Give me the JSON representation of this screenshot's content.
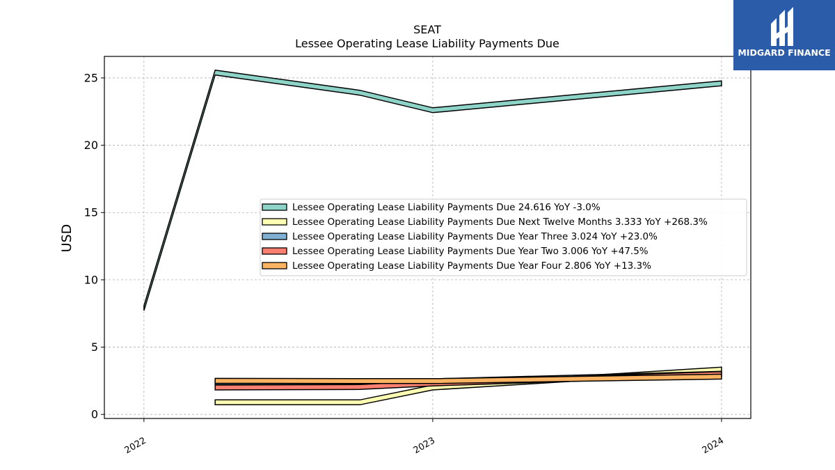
{
  "brand": {
    "name": "MIDGARD FINANCE",
    "bg_color": "#2a5caa"
  },
  "chart_data": {
    "type": "area",
    "title": "SEAT",
    "subtitle": "Lessee Operating Lease Liability Payments Due",
    "ylabel": "USD",
    "xlabel": "",
    "ylim": [
      -0.3,
      26.6
    ],
    "xlim": [
      "2021-11-12",
      "2024-02-07"
    ],
    "yticks": [
      0,
      5,
      10,
      15,
      20,
      25
    ],
    "xticks": [
      {
        "label": "2022",
        "date": "2022-01-01"
      },
      {
        "label": "2023",
        "date": "2023-01-01"
      },
      {
        "label": "2024",
        "date": "2024-01-01"
      }
    ],
    "grid": true,
    "legend_position": "center-right",
    "series": [
      {
        "name": "Lessee Operating Lease Liability Payments Due",
        "legend_label": "Lessee Operating Lease Liability Payments Due  24.616 YoY -3.0%",
        "color": "#8dd3c7",
        "x": [
          "2022-01-01",
          "2022-04-01",
          "2022-10-01",
          "2023-01-01",
          "2024-01-01"
        ],
        "y": [
          7.9,
          25.4,
          23.9,
          22.6,
          24.6
        ]
      },
      {
        "name": "Lessee Operating Lease Liability Payments Due Next Twelve Months",
        "legend_label": "Lessee Operating Lease Liability Payments Due Next Twelve Months  3.333 YoY +268.3%",
        "color": "#ffffb3",
        "x": [
          "2022-04-01",
          "2022-10-01",
          "2023-01-01",
          "2024-01-01"
        ],
        "y": [
          0.9,
          0.9,
          2.0,
          3.33
        ]
      },
      {
        "name": "Lessee Operating Lease Liability Payments Due Year Three",
        "legend_label": "Lessee Operating Lease Liability Payments Due Year Three  3.024 YoY +23.0%",
        "color": "#80b1d3",
        "x": [
          "2022-04-01",
          "2022-10-01",
          "2023-01-01",
          "2024-01-01"
        ],
        "y": [
          2.4,
          2.4,
          2.46,
          3.02
        ]
      },
      {
        "name": "Lessee Operating Lease Liability Payments Due Year Two",
        "legend_label": "Lessee Operating Lease Liability Payments Due Year Two  3.006 YoY +47.5%",
        "color": "#fb8072",
        "x": [
          "2022-04-01",
          "2022-10-01",
          "2023-01-01",
          "2024-01-01"
        ],
        "y": [
          2.0,
          2.04,
          2.3,
          3.0
        ]
      },
      {
        "name": "Lessee Operating Lease Liability Payments Due Year Four",
        "legend_label": "Lessee Operating Lease Liability Payments Due Year Four  2.806 YoY +13.3%",
        "color": "#fdb462",
        "x": [
          "2022-04-01",
          "2022-10-01",
          "2023-01-01",
          "2024-01-01"
        ],
        "y": [
          2.5,
          2.48,
          2.48,
          2.81
        ]
      }
    ]
  }
}
